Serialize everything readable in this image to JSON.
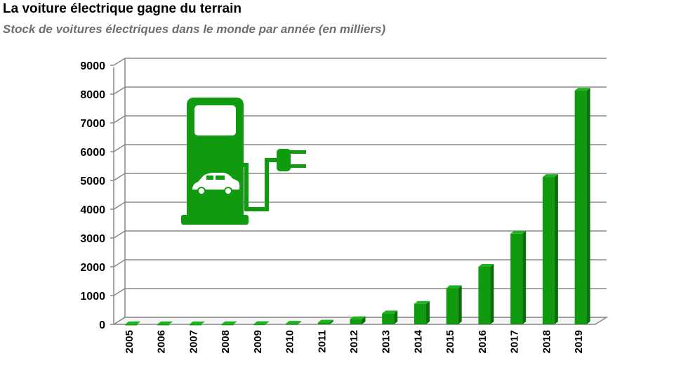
{
  "chart_data": {
    "type": "bar",
    "title": "La voiture électrique gagne du terrain",
    "subtitle": "Stock de voitures électriques dans le monde par année (en milliers)",
    "categories": [
      "2005",
      "2006",
      "2007",
      "2008",
      "2009",
      "2010",
      "2011",
      "2012",
      "2013",
      "2014",
      "2015",
      "2016",
      "2017",
      "2018",
      "2019"
    ],
    "values": [
      2,
      3,
      3,
      5,
      10,
      20,
      60,
      180,
      380,
      710,
      1260,
      2000,
      3150,
      5120,
      8120
    ],
    "ylim": [
      0,
      9000
    ],
    "yticks": [
      0,
      1000,
      2000,
      3000,
      4000,
      5000,
      6000,
      7000,
      8000,
      9000
    ],
    "xlabel": "",
    "ylabel": "",
    "grid": true,
    "colors": {
      "bar": "#0f9a0f",
      "bar_side": "#0a6e0a",
      "bar_top": "#1fb41f",
      "grid": "#888888",
      "icon": "#0f9a0f"
    }
  }
}
